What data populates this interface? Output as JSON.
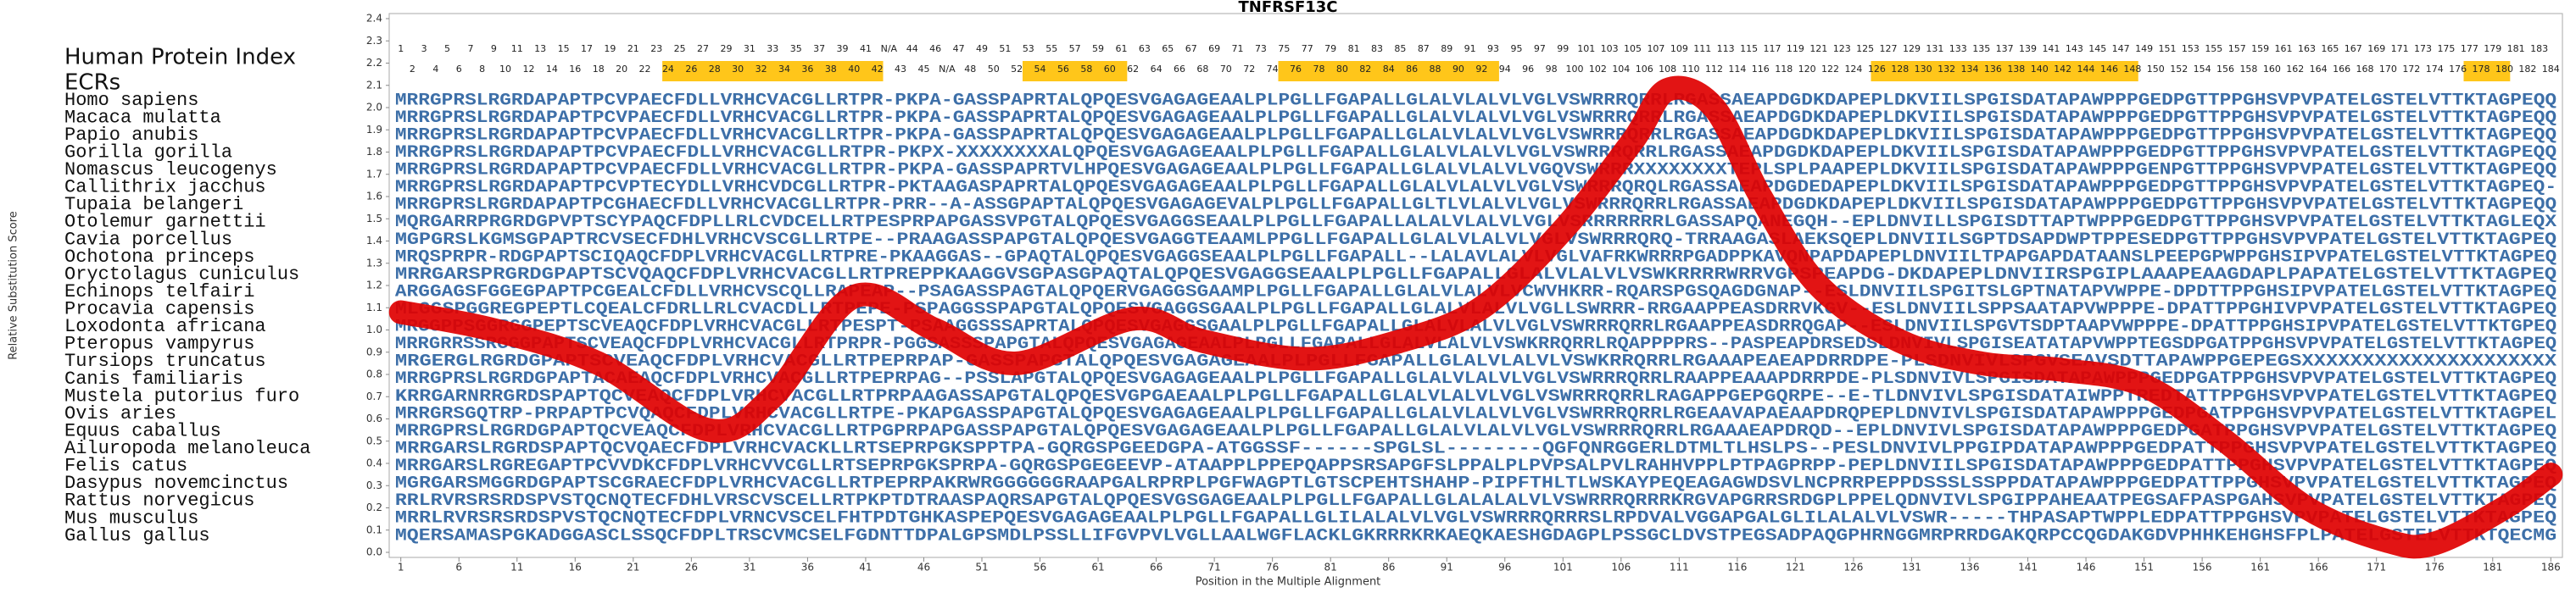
{
  "chart_data": {
    "type": "alignment",
    "title": "TNFRSF13C",
    "x_label": "Position in the Multiple Alignment",
    "y_label": "Relative Substitution Score",
    "index_label": "Human Protein Index",
    "ecr_label": "ECRs",
    "human_index": [
      1,
      2,
      3,
      4,
      5,
      6,
      7,
      8,
      9,
      10,
      11,
      12,
      13,
      14,
      15,
      16,
      17,
      18,
      19,
      20,
      21,
      22,
      23,
      24,
      25,
      26,
      27,
      28,
      29,
      30,
      31,
      32,
      33,
      34,
      35,
      36,
      37,
      38,
      39,
      40,
      41,
      42,
      "N/A",
      43,
      44,
      45,
      46,
      "N/A",
      47,
      48,
      49,
      50,
      51,
      52,
      53,
      54,
      55,
      56,
      57,
      58,
      59,
      60,
      61,
      62,
      63,
      64,
      65,
      66,
      67,
      68,
      69,
      70,
      71,
      72,
      73,
      74,
      75,
      76,
      77,
      78,
      79,
      80,
      81,
      82,
      83,
      84,
      85,
      86,
      87,
      88,
      89,
      90,
      91,
      92,
      93,
      94,
      95,
      96,
      97,
      98,
      99,
      100,
      101,
      102,
      103,
      104,
      105,
      106,
      107,
      108,
      109,
      110,
      111,
      112,
      113,
      114,
      115,
      116,
      117,
      118,
      119,
      120,
      121,
      122,
      123,
      124,
      125,
      126,
      127,
      128,
      129,
      130,
      131,
      132,
      133,
      134,
      135,
      136,
      137,
      138,
      139,
      140,
      141,
      142,
      143,
      144,
      145,
      146,
      147,
      148,
      149,
      150,
      151,
      152,
      153,
      154,
      155,
      156,
      157,
      158,
      159,
      160,
      161,
      162,
      163,
      164,
      165,
      166,
      167,
      168,
      169,
      170,
      171,
      172,
      173,
      174,
      175,
      176,
      177,
      178,
      179,
      180,
      181,
      182,
      183,
      184
    ],
    "ecrs": [
      [
        24,
        42
      ],
      [
        55,
        63
      ],
      [
        77,
        95
      ],
      [
        128,
        150
      ],
      [
        179,
        182
      ]
    ],
    "ecr_color": "#ffc61a",
    "sequence_color": "#3d6fa8",
    "species": [
      {
        "name": "Homo sapiens",
        "sequence": "MRRGPRSLRGRDAPAPTPCVPAECFDLLVRHCVACGLLRTPR-PKPA-GASSPAPRTALQPQESVGAGAGEAALPLPGLLFGAPALLGLALVLALVLVGLVSWRRRQRRLRGASSAEAPDGDKDAPEPLDKVIILSPGISDATAPAWPPPGEDPGTTPPGHSVPVPATELGSTELVTTKTAGPEQQ"
      },
      {
        "name": "Macaca mulatta",
        "sequence": "MRRGPRSLRGRDAPAPTPCVPAECFDLLVRHCVACGLLRTPR-PKPA-GASSPAPRTALQPQESVGAGAGEAALPLPGLLFGAPALLGLALVLALVLVGLVSWRRRQRRLRGASSAEAPDGDKDAPEPLDKVIILSPGISDATAPAWPPPGEDPGTTPPGHSVPVPATELGSTELVTTKTAGPEQQ"
      },
      {
        "name": "Papio anubis",
        "sequence": "MRRGPRSLRGRDAPAPTPCVPAECFDLLVRHCVACGLLRTPR-PKPA-GASSPAPRTALQPQESVGAGAGEAALPLPGLLFGAPALLGLALVLALVLVGLVSWRRRQRRLRGASSAEAPDGDKDAPEPLDKVIILSPGISDATAPAWPPPGEDPGTTPPGHSVPVPATELGSTELVTTKTAGPEQQ"
      },
      {
        "name": "Gorilla gorilla",
        "sequence": "MRRGPRSLRGRDAPAPTPCVPAECFDLLVRHCVACGLLRTPR-PKPX-XXXXXXXXALQPQESVGAGAGEAALPLPGLLFGAPALLGLALVLALVLVGLVSWRRRQRRLRGASSAEAPDGDKDAPEPLDKVIILSPGISDATAPAWPPPGEDPGTTPPGHSVPVPATELGSTELVTTKTAGPEQQ"
      },
      {
        "name": "Nomascus leucogenys",
        "sequence": "MRRGPRSLRGRDAPAPTPCVPAECFDLLVRHCVACGLLRTPR-PKPA-GASSPAPRTVLHPQESVGAGAGEAALPLPGLLFGAPALLGLALVLALVLVGQVSWRRRXXXXXXXXTEPLSPLPAAPEPLDKVIILSPGISDATAPAWPPPGENPGTTPPGHSVPVPATELGSTELVTTKTAGPEQQ"
      },
      {
        "name": "Callithrix jacchus",
        "sequence": "MRRGPRSLRGRDAPAPTPCVPTECYDLLVRHCVDCGLLRTPR-PKTAAGASPAPRTALQPQESVGAGAGEAALPLPGLLFGAPALLGLALVLALVLVGLVSWRRRQRQLRGASSAEAPDGDEDAPEPLDKVIILSPGISDATAPAWPPPGEDPGTTPPGHSVPVPATELGSTELVTTKTAGPEQ-"
      },
      {
        "name": "Tupaia belangeri",
        "sequence": "MRRGPRSLRGRDAPAPTPCGHAECFDLLVRHCVACGLLRTPR-PRR--A-ASSGPAPTALQPQESVGAGAGEVALPLPGLLFGAPALLGLTLVLALVLVGLVSWRRRQRRLRGASSAEAPDGDKDAPEPLDKVIILSPGISDATAPAWPPPGEDPGTTPPGHSVPVPATELGSTELVTTKTAGPEQQ"
      },
      {
        "name": "Otolemur garnettii",
        "sequence": "MQRGARRPRGRDGPVPTSCYPAQCFDPLLRLCVDCELLRTPESPRPAPGASSVPGTALQPQESVGAGGSEAALPLPGLLFGAPALLALALVLALVLVGLVSRRRRRRRLGASSAPQANEGQH--EPLDNVILLSPGISDTTAPTWPPPGEDPGTTPPGHSVPVPATELGSTELVTTKTAGLEQX"
      },
      {
        "name": "Cavia porcellus",
        "sequence": "MGPGRSLKGMSGPAPTRCVSECFDHLVRHCVSCGLLRTPE--PRAAGASSPAPGTALQPQESVGAGGTEAAMLPPGLLFGAPALLGLALVLALVLVGLVSWRRRQRQ-TRRAAGASLAEKSQEPLDNVIILSGPTDSAPDWPTPPESEDPGTTPPGHSVPVPATELGSTELVTTKTAGPEQ"
      },
      {
        "name": "Ochotona princeps",
        "sequence": "MRQSPRPR-RDGPAPTSCIQAQCFDPLVRHCVACGLLRTPRE-PKAAGGAS--GPAQTALQPQESVGAGGSEAALPLPGLLFGAPALL--LALAVLALVLVGLVAFRKWRRRPGADPPKAVQNPAPDAPEPLDNVIILTPAPGAPDATAANSLPEEPGPWPPGHSIPVPATELGSTELVTTKTAGPEQ"
      },
      {
        "name": "Oryctolagus cuniculus",
        "sequence": "MRRGARSPRGRDGPAPTSCVQAQCFDPLVRHCVACGLLRTPREPPKAAGGVSGPASGPAQTALQPQESVGAGGSEAALPLPGLLFGAPALLGLALVLALVLVSWKRRRRWRRVGPSPEAPDG-DKDAPEPLDNVIIRSPGIPLAAAPEAAGDAPLPAPATELGSTELVTTKTAGPEQ"
      },
      {
        "name": "Echinops telfairi",
        "sequence": "ARGGAGSFGGEGPAPTPCGEALCFDLLVRHCVSCQLLRAPEAP--PSAGASSPAGTALQPQERVGAGGSGAAMPLPGLLFGAPALLGLALVLALVLVCWVHKRR-RQARSPGSQAGDGNAP--ESLDNVIILSPGITSLGPTNATAPVWPPE-DPDTTPPGHSIPVPATELGSTELVTTKTAGPEQ"
      },
      {
        "name": "Procavia capensis",
        "sequence": "MLGGSPGGREGPEPTLCQEALCFDRLLRLCVACDLLRTPEPE-PSPAGGSSPAPGTALQPQESVGAGGSGAALPLPGLLFGAPALLGLALVLALVLVGLLSWRRR-RRGAAPPEASDRRVKGV--ESLDNVIILSPPSAATAPVWPPPE-DPATTPPGHIVPVPATELGSTELVTTKTAGPEQ"
      },
      {
        "name": "Loxodonta africana",
        "sequence": "MRGGPPSGGRGGPEPTSCVEAQCFDPLVRHCVACGLLRTPESPT-PSAAGGSSSAPRTALQPQESVGAGGSGAALPLPGLLFGAPALLGLALVLALVLVGLVSWRRRQRRLRGAAPPEASDRRQGAP--ESLDNVIILSPGVTSDPTAAPVWPPPE-DPATTPPGHSIPVPATELGSTELVTTKTGPEQ"
      },
      {
        "name": "Pteropus vampyrus",
        "sequence": "MRRGRRSSRGGGPAPTSCVEAQCFDPLVRHCVACGLLRTPRPR-PGGSASSSPAPGTALQPQESVGAGAGEAALPLPGLLFGAPALLGLALVLALVLVSWKRRQRRLRQAPPPPRS--PASPEAPDRSEDSLDNVIVLSPGISEATATAPVWPPTEGSDPGATPPGHSVPVPATELGSTELVTTKTAGPEQ"
      },
      {
        "name": "Tursiops truncatus",
        "sequence": "MRGERGLRGRDGPAPTSCVEAQCFDPLVRHCVACGLLRTPEPRPAP-GASSPAPGTALQPQESVGAGAGEAALPLPGLLFGAPALLGLALVLALVLVSWKRRQRRLRGAAAPEAEAPDRRDPE-PLSDNVIVLSPGVSEAVSDTTAPAWPPGEPEGSXXXXXXXXXXXXXXXXXXXXX"
      },
      {
        "name": "Canis familiaris",
        "sequence": "MRRGPRSLRGRDGPAPTACAEAQCFDPLVRHCVACGLLRTPEPRPAG--PSSLAPGTALQPQESVGAGAGEAALPLPGLLFGAPALLGLALVLALVLVGLVSWRRRQRRLRAAPPEAAAPDRRPDE-PLSDNVIVLSPGISDATAPAWPPPGEDPGATPPGHSVPVPATELGSTELVTTKTAGPEQ"
      },
      {
        "name": "Mustela putorius furo",
        "sequence": "KRRGARNRRGRDSPAPTQCVEAQCFDPLVRHCVACGLLRTPRPAAGASSAPGTALQPQESVGPGAEAALPLPGLLFGAPALLGLALVLALVLVGLVSWRRRQRRLRAGAPPGEPGQRPE--E-TLDNVIVLSPGISDATAIWPPTREDTATTPPGHSVPVPATELGSTELVTTKTAGPEQ"
      },
      {
        "name": "Ovis aries",
        "sequence": "MRRGRSGQTRP-PRPAPTPCVQAQCFDPLVRHCVACGLLRTPE-PKAPGASSPAPGTALQPQESVGAGAGEAALPLPGLLFGAPALLGLALVLALVLVGLVSWRRRQRRLRGEAAVAPAEAAPDRQPEPLDNVIVLSPGISDATAPAWPPPGEDPGATPPGHSVPVPATELGSTELVTTKTAGPEL"
      },
      {
        "name": "Equus caballus",
        "sequence": "MRRGPRSLRGRDGPAPTQCVEAQCFDPLVRHCVACGLLRTPGPRPAPGASSPAPGTALQPQESVGAGAGEAALPLPGLLFGAPALLGLALVLALVLVGLVSWRRRQRRLRGAAAEAPDRQD--EPLDNVIVLSPGISDATAPAWPPPGEDPGATPPGHSVPVPATELGSTELVTTKTAGPEQ"
      },
      {
        "name": "Ailuropoda melanoleuca",
        "sequence": "MRRGARSLRGRDSPAPTQCVQAECFDPLVRHCVACKLLRTSEPRPGKSPPTPA-GQRGSPGEEDGPA-ATGGSSF------SPGLSL--------QGFQNRGGERLDTMLTLHSLPS--PESLDNVIVLPPGIPDATAPAWPPPGEDPATTPPGHSVPVPATELGSTELVTTKTAGPEQ"
      },
      {
        "name": "Felis catus",
        "sequence": "MRRGARSLRGREGAPTPCVVDKCFDPLVRHCVVCGLLRTSEPRPGKSPRPA-GQRGSPGEGEEVP-ATAAPPLPPEPQAPPSRSAPGFSLPPALPLPVPSALPVLRAHHVPPLPTPAGPRPP-PEPLDNVIILSPGISDATAPAWPPPGEDPATTPPGHSVPVPATELGSTELVTTKTAGPEQ"
      },
      {
        "name": "Dasypus novemcinctus",
        "sequence": "MGRGARSMGGRDGPAPTSCGRAECFDPLVRHCVACGLLRTPEPRPAKRWRGGGGGGRAAPGALRPRPLPGFWAGPTLGTSCPEHTSHAHP-PIPFTHLTLWSKAYPEQEAGAGWDSVLNCPRRPEPPDSSSLSSPPDATAPAWPPPGEDPATTPPGHSVPVPATELGSTELVTTKTAGPEQ"
      },
      {
        "name": "Rattus norvegicus",
        "sequence": "RRLRVRSRSRDSPVSTQCNQTECFDHLVRSCVSCELLRTPKPTDTRAASPAQRSAPGTALQPQESVGSGAGEAALPLPGLLFGAPALLGLALALALVLVSWRRRQRRRKRGVAPGRRSRDGPLPPELQDNVIVLSPGIPPAHEAATPEGSAFPASPGAHSVPVPATELGSTELVTTKTAGPEQ"
      },
      {
        "name": "Mus musculus",
        "sequence": "MRRLRVRSRSRDSPVSTQCNQTECFDPLVRNCVSCELFHTPDTGHKASPEPQESVGAGAGEAALPLPGLLFGAPALLGLILALALVLVGLVSWRRRQRRRSLRPDVALVGGAPGALGLILALALVLVSWR-----THPASAPTWPPLEDPATTPPGHSVPVPATELGSTELVTTKTAGPEQ"
      },
      {
        "name": "Gallus gallus",
        "sequence": "MQERSAMASPGKADGGASCLSSQCFDPLTRSCVMCSELFGDNTTDPALGPSMDLPSSLLIFGVPVLVGLLAALWGFLACKLGKRRRKRKAEQKAESHGDAGPLPSSGCLDVSTPEGSADPAQGPHRNGGMRPRRDGAKQRPCCQGDAKGDVPHHKEHGHSFPLPATELGSTELVTTKTQECMG"
      }
    ],
    "x": [
      1,
      9,
      18,
      27.5,
      33,
      40,
      47,
      54,
      64,
      70,
      79,
      87,
      94,
      101,
      107,
      110,
      114,
      118,
      123,
      130,
      137,
      144,
      151,
      158,
      165,
      172,
      176,
      182,
      186
    ],
    "values": [
      1.08,
      1.0,
      0.85,
      0.55,
      0.7,
      1.15,
      1.0,
      0.85,
      1.05,
      0.95,
      0.87,
      0.95,
      1.1,
      1.45,
      1.85,
      2.08,
      2.0,
      1.6,
      1.2,
      0.95,
      0.85,
      0.82,
      0.75,
      0.5,
      0.2,
      0.05,
      0.04,
      0.2,
      0.35
    ],
    "color": "#e00000",
    "xlim": [
      0,
      187
    ],
    "ylim": [
      0,
      2.4
    ],
    "xticks": [
      1,
      6,
      11,
      16,
      21,
      26,
      31,
      36,
      41,
      46,
      51,
      56,
      61,
      66,
      71,
      76,
      81,
      86,
      91,
      96,
      101,
      106,
      111,
      116,
      121,
      126,
      131,
      136,
      141,
      146,
      151,
      156,
      161,
      166,
      171,
      176,
      181,
      186
    ],
    "yticks": [
      {
        "value": 0,
        "label": "0.0"
      },
      0.1,
      0.2,
      0.3,
      0.4,
      0.5,
      0.6,
      0.7,
      0.8,
      0.9,
      {
        "value": 1,
        "label": "1.0"
      },
      1.1,
      1.2,
      1.3,
      1.4,
      1.5,
      1.6,
      1.7,
      1.8,
      1.9,
      {
        "value": 2,
        "label": "2.0"
      },
      2.1,
      2.2,
      2.3,
      2.4
    ]
  }
}
